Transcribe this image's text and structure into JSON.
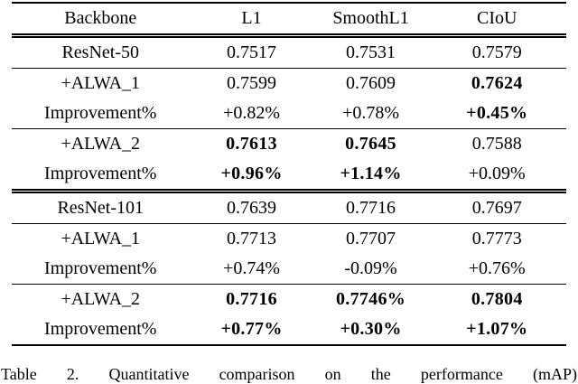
{
  "page": {
    "background_color": "#ffffff",
    "text_color": "#000000"
  },
  "table": {
    "headers": [
      "Backbone",
      "L1",
      "SmoothL1",
      "CIoU"
    ],
    "rows": [
      {
        "cells": [
          "ResNet-50",
          "0.7517",
          "0.7531",
          "0.7579"
        ],
        "bold": [
          false,
          false,
          false,
          false
        ]
      },
      {
        "cells": [
          "+ALWA_1",
          "0.7599",
          "0.7609",
          "0.7624"
        ],
        "bold": [
          false,
          false,
          false,
          true
        ]
      },
      {
        "cells": [
          "Improvement%",
          "+0.82%",
          "+0.78%",
          "+0.45%"
        ],
        "bold": [
          false,
          false,
          false,
          true
        ]
      },
      {
        "cells": [
          "+ALWA_2",
          "0.7613",
          "0.7645",
          "0.7588"
        ],
        "bold": [
          false,
          true,
          true,
          false
        ]
      },
      {
        "cells": [
          "Improvement%",
          "+0.96%",
          "+1.14%",
          "+0.09%"
        ],
        "bold": [
          false,
          true,
          true,
          false
        ]
      },
      {
        "cells": [
          "ResNet-101",
          "0.7639",
          "0.7716",
          "0.7697"
        ],
        "bold": [
          false,
          false,
          false,
          false
        ]
      },
      {
        "cells": [
          "+ALWA_1",
          "0.7713",
          "0.7707",
          "0.7773"
        ],
        "bold": [
          false,
          false,
          false,
          false
        ]
      },
      {
        "cells": [
          "Improvement%",
          "+0.74%",
          "-0.09%",
          "+0.76%"
        ],
        "bold": [
          false,
          false,
          false,
          false
        ]
      },
      {
        "cells": [
          "+ALWA_2",
          "0.7716",
          "0.7746%",
          "0.7804"
        ],
        "bold": [
          false,
          true,
          true,
          true
        ]
      },
      {
        "cells": [
          "Improvement%",
          "+0.77%",
          "+0.30%",
          "+1.07%"
        ],
        "bold": [
          false,
          true,
          true,
          true
        ]
      }
    ]
  },
  "caption": {
    "text": "Table 2. Quantitative comparison on the performance (mAP)"
  }
}
